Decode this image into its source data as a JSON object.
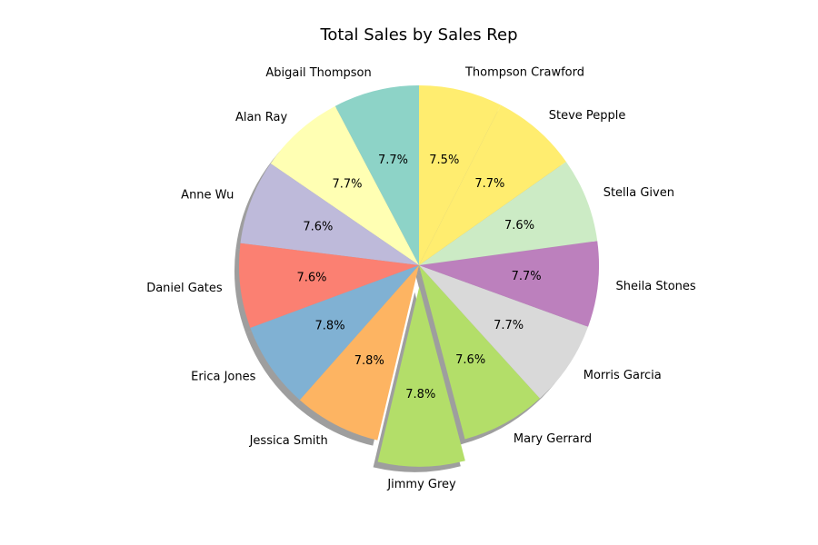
{
  "chart_data": {
    "type": "pie",
    "title": "Total Sales by Sales Rep",
    "slices": [
      {
        "label": "Abigail Thompson",
        "pct_label": "7.7%",
        "value": 7.7,
        "color": "#8dd3c7",
        "explode": false
      },
      {
        "label": "Alan Ray",
        "pct_label": "7.7%",
        "value": 7.7,
        "color": "#ffffb3",
        "explode": false
      },
      {
        "label": "Anne Wu",
        "pct_label": "7.6%",
        "value": 7.6,
        "color": "#bebada",
        "explode": false
      },
      {
        "label": "Daniel Gates",
        "pct_label": "7.6%",
        "value": 7.6,
        "color": "#fb8072",
        "explode": false
      },
      {
        "label": "Erica Jones",
        "pct_label": "7.8%",
        "value": 7.8,
        "color": "#80b1d3",
        "explode": false
      },
      {
        "label": "Jessica Smith",
        "pct_label": "7.8%",
        "value": 7.8,
        "color": "#fdb462",
        "explode": false
      },
      {
        "label": "Jimmy Grey",
        "pct_label": "7.8%",
        "value": 7.8,
        "color": "#b3de69",
        "explode": true
      },
      {
        "label": "Mary Gerrard",
        "pct_label": "7.6%",
        "value": 7.6,
        "color": "#b3de69",
        "explode": false
      },
      {
        "label": "Morris Garcia",
        "pct_label": "7.7%",
        "value": 7.7,
        "color": "#d9d9d9",
        "explode": false
      },
      {
        "label": "Sheila Stones",
        "pct_label": "7.7%",
        "value": 7.7,
        "color": "#bc80bd",
        "explode": false
      },
      {
        "label": "Stella Given",
        "pct_label": "7.6%",
        "value": 7.6,
        "color": "#ccebc5",
        "explode": false
      },
      {
        "label": "Steve Pepple",
        "pct_label": "7.7%",
        "value": 7.7,
        "color": "#ffed6f",
        "explode": false
      },
      {
        "label": "Thompson Crawford",
        "pct_label": "7.5%",
        "value": 7.5,
        "color": "#ffed6f",
        "explode": false
      }
    ],
    "start_angle": "top",
    "direction": "counterclockwise",
    "shadow": true,
    "legend": "none"
  }
}
